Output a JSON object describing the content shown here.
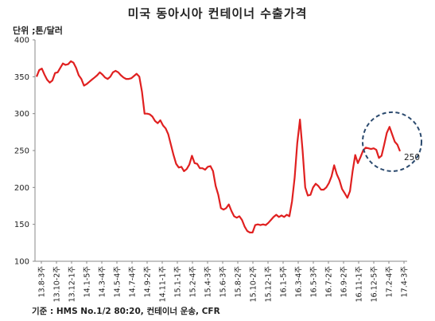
{
  "title": "미국 동아시아 컨테이너 수출가격",
  "unit_label": "단위 ;톤/달러",
  "source_note": "기준 : HMS No.1/2 80:20, 컨테이너 운송, CFR",
  "chart_data": {
    "type": "line",
    "title": "미국 동아시아 컨테이너 수출가격",
    "ylabel": "단위 ;톤/달러",
    "xlabel": "",
    "ylim": [
      100,
      400
    ],
    "yticks": [
      100,
      150,
      200,
      250,
      300,
      350,
      400
    ],
    "grid": false,
    "line_color": "#e02020",
    "highlight": {
      "text": "250",
      "value": 250,
      "circle_color": "#2b4a6e"
    },
    "x_labels": [
      "13.8-3주",
      "13.10-2주",
      "13.12-1주",
      "14.1-5주",
      "14.3-4주",
      "14.5-4주",
      "14.7-4주",
      "14.9-2주",
      "14.11-1주",
      "15.1-1주",
      "15.2-4주",
      "15.4-3주",
      "15.6-3주",
      "15.8-2주",
      "15.10-2주",
      "15.12-1주",
      "16.1-5주",
      "16.3-4주",
      "16.5-3주",
      "16.7-2주",
      "16.9-2주",
      "16.11-1주",
      "16.12-5주",
      "17.2-4주",
      "17.4-3주"
    ],
    "values": [
      350,
      359,
      361,
      353,
      346,
      342,
      345,
      355,
      356,
      362,
      368,
      366,
      367,
      371,
      369,
      362,
      352,
      347,
      338,
      340,
      343,
      346,
      349,
      352,
      356,
      353,
      349,
      347,
      350,
      356,
      358,
      356,
      352,
      349,
      347,
      347,
      348,
      351,
      354,
      350,
      330,
      300,
      300,
      299,
      296,
      290,
      287,
      291,
      284,
      280,
      272,
      258,
      244,
      232,
      227,
      228,
      222,
      225,
      231,
      243,
      233,
      232,
      226,
      226,
      224,
      228,
      229,
      222,
      202,
      190,
      172,
      170,
      172,
      177,
      168,
      161,
      159,
      161,
      156,
      147,
      141,
      139,
      139,
      149,
      150,
      149,
      150,
      149,
      152,
      156,
      160,
      163,
      160,
      162,
      160,
      163,
      161,
      181,
      213,
      260,
      292,
      250,
      200,
      189,
      190,
      200,
      205,
      202,
      197,
      197,
      200,
      206,
      215,
      230,
      218,
      210,
      198,
      192,
      186,
      195,
      222,
      244,
      233,
      241,
      250,
      254,
      253,
      252,
      253,
      251,
      240,
      243,
      258,
      274,
      282,
      272,
      262,
      258,
      249
    ]
  }
}
